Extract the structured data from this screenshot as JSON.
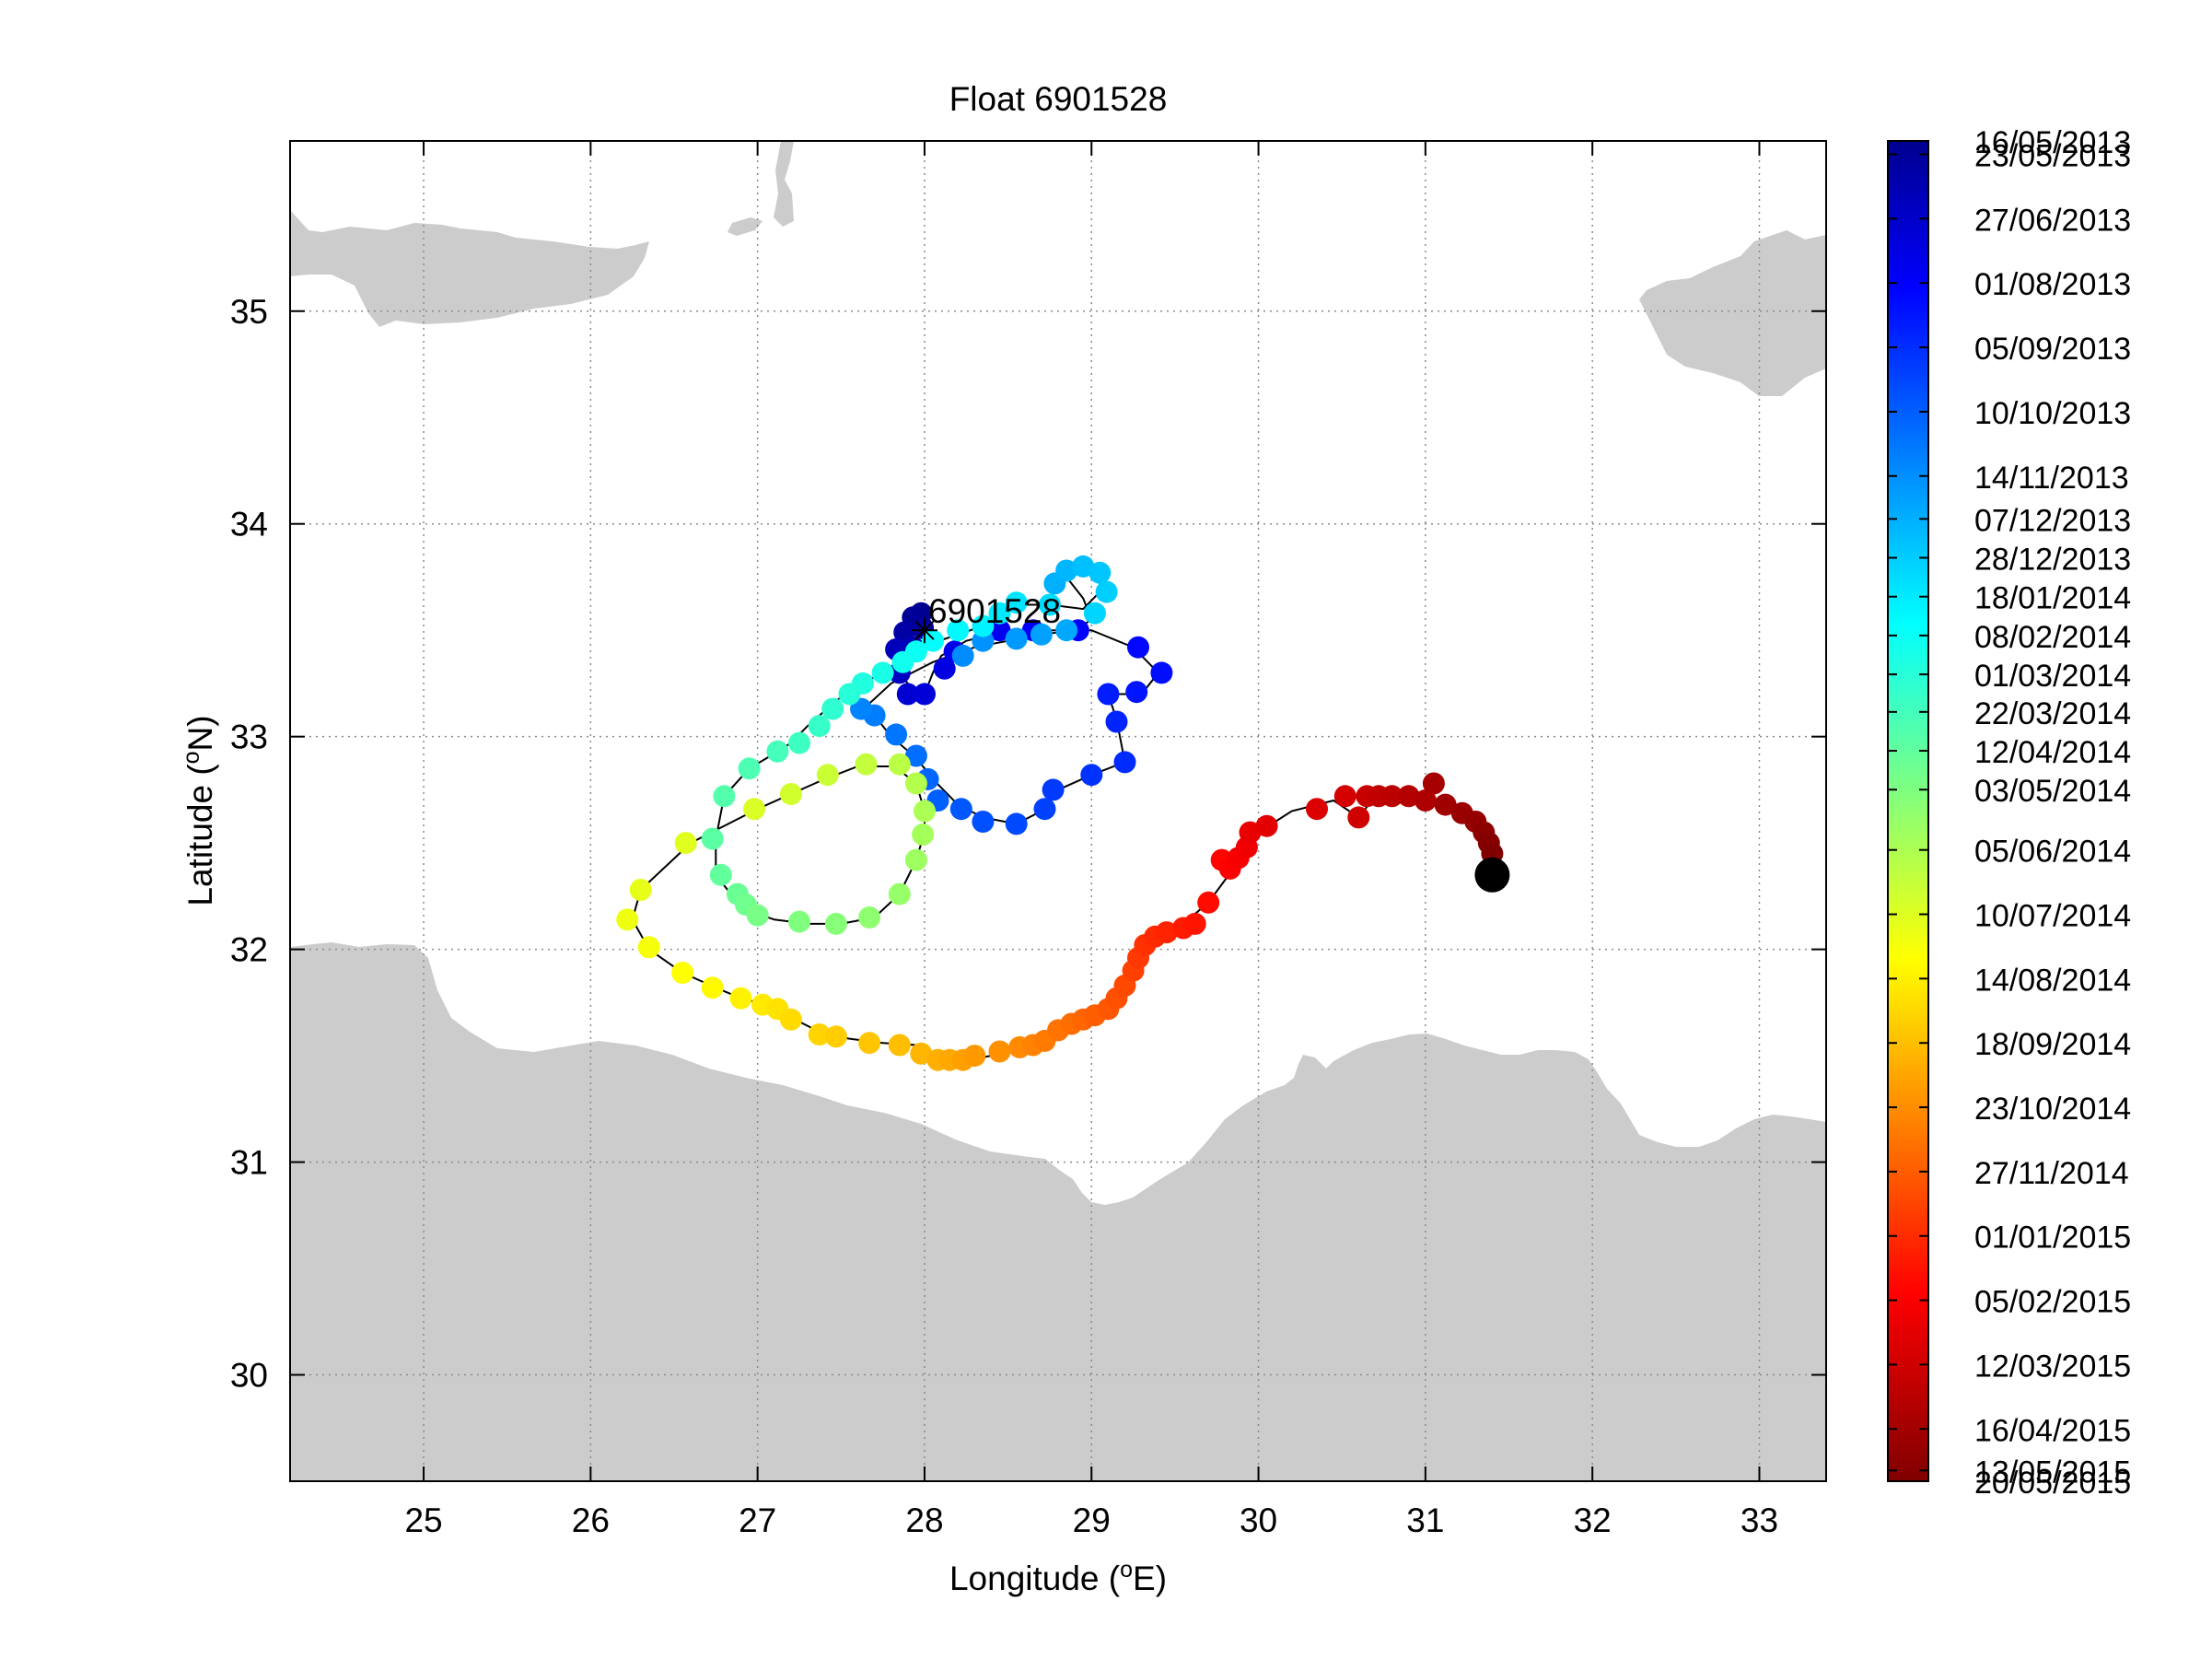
{
  "title": "Float 6901528",
  "float_label": "6901528",
  "xlabel_main": "Longitude (",
  "xlabel_sup": "o",
  "xlabel_end": "E)",
  "ylabel_main": "Latitude (",
  "ylabel_sup": "o",
  "ylabel_end": "N)",
  "colors": {
    "land": "#cccccc",
    "track": "#000000",
    "end_marker": "#000000"
  },
  "colorbar_ticks": [
    {
      "label": "16/05/2013",
      "pos": 0.0
    },
    {
      "label": "23/05/2013",
      "pos": 0.01
    },
    {
      "label": "27/06/2013",
      "pos": 0.058
    },
    {
      "label": "01/08/2013",
      "pos": 0.106
    },
    {
      "label": "05/09/2013",
      "pos": 0.154
    },
    {
      "label": "10/10/2013",
      "pos": 0.202
    },
    {
      "label": "14/11/2013",
      "pos": 0.25
    },
    {
      "label": "07/12/2013",
      "pos": 0.282
    },
    {
      "label": "28/12/2013",
      "pos": 0.311
    },
    {
      "label": "18/01/2014",
      "pos": 0.34
    },
    {
      "label": "08/02/2014",
      "pos": 0.369
    },
    {
      "label": "01/03/2014",
      "pos": 0.398
    },
    {
      "label": "22/03/2014",
      "pos": 0.426
    },
    {
      "label": "12/04/2014",
      "pos": 0.455
    },
    {
      "label": "03/05/2014",
      "pos": 0.484
    },
    {
      "label": "05/06/2014",
      "pos": 0.529
    },
    {
      "label": "10/07/2014",
      "pos": 0.577
    },
    {
      "label": "14/08/2014",
      "pos": 0.625
    },
    {
      "label": "18/09/2014",
      "pos": 0.673
    },
    {
      "label": "23/10/2014",
      "pos": 0.721
    },
    {
      "label": "27/11/2014",
      "pos": 0.769
    },
    {
      "label": "01/01/2015",
      "pos": 0.817
    },
    {
      "label": "05/02/2015",
      "pos": 0.865
    },
    {
      "label": "12/03/2015",
      "pos": 0.913
    },
    {
      "label": "16/04/2015",
      "pos": 0.961
    },
    {
      "label": "13/05/2015",
      "pos": 0.992
    },
    {
      "label": "20/05/2015",
      "pos": 1.0
    }
  ],
  "chart_data": {
    "type": "scatter",
    "title": "Float 6901528",
    "xlabel": "Longitude (oE)",
    "ylabel": "Latitude (oN)",
    "xlim": [
      24.2,
      33.4
    ],
    "ylim": [
      29.5,
      35.8
    ],
    "xticks": [
      25,
      26,
      27,
      28,
      29,
      30,
      31,
      32,
      33
    ],
    "yticks": [
      30,
      31,
      32,
      33,
      34,
      35
    ],
    "grid": true,
    "colormap": "jet",
    "colorbar_range": [
      "16/05/2013",
      "20/05/2015"
    ],
    "track": [
      [
        28.0,
        33.55
      ],
      [
        27.93,
        33.55
      ],
      [
        27.95,
        33.5
      ],
      [
        27.85,
        33.48
      ],
      [
        27.9,
        33.42
      ],
      [
        27.8,
        33.42
      ],
      [
        27.82,
        33.32
      ],
      [
        27.9,
        33.25
      ],
      [
        27.95,
        33.2
      ],
      [
        28.0,
        33.2
      ],
      [
        28.05,
        33.3
      ],
      [
        28.1,
        33.38
      ],
      [
        28.25,
        33.45
      ],
      [
        28.4,
        33.48
      ],
      [
        28.6,
        33.5
      ],
      [
        28.8,
        33.5
      ],
      [
        29.0,
        33.5
      ],
      [
        29.25,
        33.42
      ],
      [
        29.4,
        33.3
      ],
      [
        29.3,
        33.2
      ],
      [
        29.1,
        33.2
      ],
      [
        29.15,
        33.08
      ],
      [
        29.2,
        32.88
      ],
      [
        29.0,
        32.82
      ],
      [
        28.8,
        32.75
      ],
      [
        28.7,
        32.65
      ],
      [
        28.55,
        32.59
      ],
      [
        28.35,
        32.62
      ],
      [
        28.2,
        32.68
      ],
      [
        28.05,
        32.8
      ],
      [
        27.95,
        32.9
      ],
      [
        27.8,
        33.0
      ],
      [
        27.7,
        33.1
      ],
      [
        27.62,
        33.12
      ],
      [
        27.8,
        33.25
      ],
      [
        28.05,
        33.35
      ],
      [
        28.3,
        33.42
      ],
      [
        28.5,
        33.45
      ],
      [
        28.7,
        33.48
      ],
      [
        28.9,
        33.5
      ],
      [
        29.0,
        33.55
      ],
      [
        28.95,
        33.65
      ],
      [
        28.85,
        33.75
      ],
      [
        28.95,
        33.8
      ],
      [
        29.05,
        33.78
      ],
      [
        29.05,
        33.68
      ],
      [
        28.95,
        33.6
      ],
      [
        28.75,
        33.62
      ],
      [
        28.55,
        33.62
      ],
      [
        28.35,
        33.52
      ],
      [
        28.2,
        33.48
      ],
      [
        28.05,
        33.44
      ],
      [
        27.9,
        33.38
      ],
      [
        27.75,
        33.3
      ],
      [
        27.55,
        33.22
      ],
      [
        27.4,
        33.12
      ],
      [
        27.3,
        33.05
      ],
      [
        27.2,
        32.97
      ],
      [
        27.1,
        32.92
      ],
      [
        26.95,
        32.85
      ],
      [
        26.8,
        32.72
      ],
      [
        26.75,
        32.52
      ],
      [
        26.75,
        32.35
      ],
      [
        26.85,
        32.25
      ],
      [
        26.95,
        32.18
      ],
      [
        27.1,
        32.14
      ],
      [
        27.3,
        32.12
      ],
      [
        27.5,
        32.12
      ],
      [
        27.7,
        32.15
      ],
      [
        27.85,
        32.26
      ],
      [
        27.95,
        32.42
      ],
      [
        28.0,
        32.55
      ],
      [
        28.0,
        32.65
      ],
      [
        27.95,
        32.78
      ],
      [
        27.82,
        32.86
      ],
      [
        27.6,
        32.86
      ],
      [
        27.4,
        32.8
      ],
      [
        27.2,
        32.73
      ],
      [
        27.0,
        32.66
      ],
      [
        26.85,
        32.6
      ],
      [
        26.6,
        32.5
      ],
      [
        26.3,
        32.28
      ],
      [
        26.25,
        32.14
      ],
      [
        26.35,
        32.0
      ],
      [
        26.55,
        31.89
      ],
      [
        26.75,
        31.82
      ],
      [
        26.9,
        31.77
      ],
      [
        27.05,
        31.74
      ],
      [
        27.15,
        31.7
      ],
      [
        27.25,
        31.66
      ],
      [
        27.4,
        31.6
      ],
      [
        27.55,
        31.58
      ],
      [
        27.75,
        31.56
      ],
      [
        27.95,
        31.55
      ],
      [
        28.1,
        31.5
      ],
      [
        28.25,
        31.48
      ],
      [
        28.4,
        31.5
      ],
      [
        28.55,
        31.52
      ],
      [
        28.7,
        31.55
      ],
      [
        28.85,
        31.62
      ],
      [
        29.0,
        31.68
      ],
      [
        29.1,
        31.72
      ],
      [
        29.2,
        31.85
      ],
      [
        29.3,
        31.98
      ],
      [
        29.35,
        32.05
      ],
      [
        29.45,
        32.08
      ],
      [
        29.55,
        32.12
      ],
      [
        29.7,
        32.22
      ],
      [
        29.85,
        32.38
      ],
      [
        29.9,
        32.45
      ],
      [
        30.0,
        32.55
      ],
      [
        30.2,
        32.65
      ],
      [
        30.45,
        32.7
      ],
      [
        30.6,
        32.62
      ],
      [
        30.7,
        32.72
      ],
      [
        30.85,
        32.72
      ],
      [
        31.0,
        32.72
      ],
      [
        31.15,
        32.68
      ],
      [
        31.25,
        32.63
      ],
      [
        31.35,
        32.58
      ],
      [
        31.4,
        32.48
      ],
      [
        31.42,
        32.4
      ],
      [
        31.4,
        32.35
      ]
    ],
    "profiles": [
      [
        27.98,
        33.58,
        0.0
      ],
      [
        27.93,
        33.56,
        0.01
      ],
      [
        27.99,
        33.51,
        0.02
      ],
      [
        27.88,
        33.49,
        0.03
      ],
      [
        27.93,
        33.42,
        0.05
      ],
      [
        27.83,
        33.41,
        0.06
      ],
      [
        27.85,
        33.3,
        0.07
      ],
      [
        27.9,
        33.2,
        0.09
      ],
      [
        28.0,
        33.2,
        0.1
      ],
      [
        28.12,
        33.32,
        0.11
      ],
      [
        28.18,
        33.4,
        0.12
      ],
      [
        28.45,
        33.5,
        0.13
      ],
      [
        28.65,
        33.5,
        0.14
      ],
      [
        28.92,
        33.5,
        0.15
      ],
      [
        29.28,
        33.42,
        0.16
      ],
      [
        29.42,
        33.3,
        0.17
      ],
      [
        29.27,
        33.21,
        0.18
      ],
      [
        29.1,
        33.2,
        0.19
      ],
      [
        29.15,
        33.07,
        0.2
      ],
      [
        29.2,
        32.88,
        0.21
      ],
      [
        29.0,
        32.82,
        0.22
      ],
      [
        28.77,
        32.75,
        0.23
      ],
      [
        28.72,
        32.66,
        0.24
      ],
      [
        28.55,
        32.59,
        0.25
      ],
      [
        28.35,
        32.6,
        0.26
      ],
      [
        28.22,
        32.66,
        0.27
      ],
      [
        28.08,
        32.7,
        0.28
      ],
      [
        28.02,
        32.8,
        0.29
      ],
      [
        27.95,
        32.91,
        0.3
      ],
      [
        27.83,
        33.01,
        0.31
      ],
      [
        27.7,
        33.1,
        0.32
      ],
      [
        27.62,
        33.13,
        0.33
      ],
      [
        28.23,
        33.38,
        0.34
      ],
      [
        28.35,
        33.45,
        0.35
      ],
      [
        28.55,
        33.46,
        0.36
      ],
      [
        28.7,
        33.48,
        0.37
      ],
      [
        28.85,
        33.5,
        0.38
      ],
      [
        28.78,
        33.72,
        0.39
      ],
      [
        28.85,
        33.78,
        0.4
      ],
      [
        28.95,
        33.8,
        0.41
      ],
      [
        29.05,
        33.77,
        0.42
      ],
      [
        29.09,
        33.68,
        0.43
      ],
      [
        29.02,
        33.58,
        0.44
      ],
      [
        28.75,
        33.62,
        0.45
      ],
      [
        28.55,
        33.63,
        0.46
      ],
      [
        28.45,
        33.58,
        0.47
      ],
      [
        28.35,
        33.52,
        0.48
      ],
      [
        28.2,
        33.5,
        0.49
      ],
      [
        28.05,
        33.45,
        0.5
      ],
      [
        27.95,
        33.4,
        0.51
      ],
      [
        27.87,
        33.35,
        0.52
      ],
      [
        27.75,
        33.3,
        0.53
      ],
      [
        27.63,
        33.25,
        0.54
      ],
      [
        27.55,
        33.2,
        0.55
      ],
      [
        27.45,
        33.13,
        0.56
      ],
      [
        27.37,
        33.05,
        0.57
      ],
      [
        27.25,
        32.97,
        0.58
      ],
      [
        27.12,
        32.93,
        0.59
      ],
      [
        26.95,
        32.85,
        0.6
      ],
      [
        26.8,
        32.72,
        0.61
      ],
      [
        26.73,
        32.52,
        0.62
      ],
      [
        26.78,
        32.35,
        0.63
      ],
      [
        26.88,
        32.26,
        0.64
      ],
      [
        26.93,
        32.21,
        0.65
      ],
      [
        27.0,
        32.16,
        0.66
      ],
      [
        27.25,
        32.13,
        0.67
      ],
      [
        27.47,
        32.12,
        0.68
      ],
      [
        27.67,
        32.15,
        0.69
      ],
      [
        27.85,
        32.26,
        0.7
      ],
      [
        27.95,
        32.42,
        0.71
      ],
      [
        27.99,
        32.54,
        0.72
      ],
      [
        28.0,
        32.65,
        0.73
      ],
      [
        27.95,
        32.78,
        0.74
      ],
      [
        27.85,
        32.87,
        0.75
      ],
      [
        27.65,
        32.87,
        0.76
      ],
      [
        27.42,
        32.82,
        0.77
      ],
      [
        27.2,
        32.73,
        0.78
      ],
      [
        26.98,
        32.66,
        0.79
      ],
      [
        26.57,
        32.5,
        0.8
      ],
      [
        26.3,
        32.28,
        0.81
      ],
      [
        26.22,
        32.14,
        0.82
      ],
      [
        26.35,
        32.01,
        0.83
      ],
      [
        26.55,
        31.89,
        0.84
      ],
      [
        26.73,
        31.82,
        0.85
      ],
      [
        26.9,
        31.77,
        0.86
      ],
      [
        27.03,
        31.74,
        0.87
      ],
      [
        27.12,
        31.72,
        0.88
      ],
      [
        27.2,
        31.67,
        0.89
      ],
      [
        27.37,
        31.6,
        0.9
      ],
      [
        27.47,
        31.59,
        0.91
      ],
      [
        27.67,
        31.56,
        0.92
      ],
      [
        27.85,
        31.55,
        0.93
      ],
      [
        27.98,
        31.51,
        0.94
      ],
      [
        28.08,
        31.48,
        0.95
      ],
      [
        28.15,
        31.48,
        0.96
      ],
      [
        28.23,
        31.48,
        0.97
      ],
      [
        28.3,
        31.5,
        0.98
      ],
      [
        28.45,
        31.52,
        0.99
      ],
      [
        28.57,
        31.54,
        1.0
      ],
      [
        28.65,
        31.55,
        1.01
      ],
      [
        28.72,
        31.57,
        1.02
      ],
      [
        28.8,
        31.62,
        1.03
      ],
      [
        28.88,
        31.65,
        1.04
      ],
      [
        28.95,
        31.67,
        1.05
      ],
      [
        29.02,
        31.69,
        1.06
      ],
      [
        29.1,
        31.72,
        1.07
      ],
      [
        29.15,
        31.77,
        1.08
      ],
      [
        29.2,
        31.83,
        1.09
      ],
      [
        29.25,
        31.9,
        1.1
      ],
      [
        29.28,
        31.96,
        1.11
      ],
      [
        29.32,
        32.02,
        1.12
      ],
      [
        29.38,
        32.06,
        1.13
      ],
      [
        29.45,
        32.08,
        1.14
      ],
      [
        29.55,
        32.1,
        1.15
      ],
      [
        29.62,
        32.12,
        1.16
      ],
      [
        29.7,
        32.22,
        1.17
      ],
      [
        29.78,
        32.42,
        1.18
      ],
      [
        29.83,
        32.38,
        1.19
      ],
      [
        29.88,
        32.43,
        1.2
      ],
      [
        29.93,
        32.48,
        1.21
      ],
      [
        29.95,
        32.55,
        1.22
      ],
      [
        30.05,
        32.58,
        1.23
      ],
      [
        30.35,
        32.66,
        1.24
      ],
      [
        30.52,
        32.72,
        1.25
      ],
      [
        30.6,
        32.62,
        1.26
      ],
      [
        30.65,
        32.72,
        1.27
      ],
      [
        30.72,
        32.72,
        1.28
      ],
      [
        30.8,
        32.72,
        1.29
      ],
      [
        30.9,
        32.72,
        1.3
      ],
      [
        31.0,
        32.7,
        1.31
      ],
      [
        31.05,
        32.78,
        1.32
      ],
      [
        31.12,
        32.68,
        1.33
      ],
      [
        31.22,
        32.64,
        1.34
      ],
      [
        31.3,
        32.6,
        1.35
      ],
      [
        31.35,
        32.55,
        1.36
      ],
      [
        31.38,
        32.5,
        1.37
      ],
      [
        31.4,
        32.45,
        1.38
      ]
    ],
    "start_marker": {
      "lon": 28.0,
      "lat": 33.5,
      "label": "6901528"
    },
    "end_marker": {
      "lon": 31.4,
      "lat": 32.35
    }
  }
}
